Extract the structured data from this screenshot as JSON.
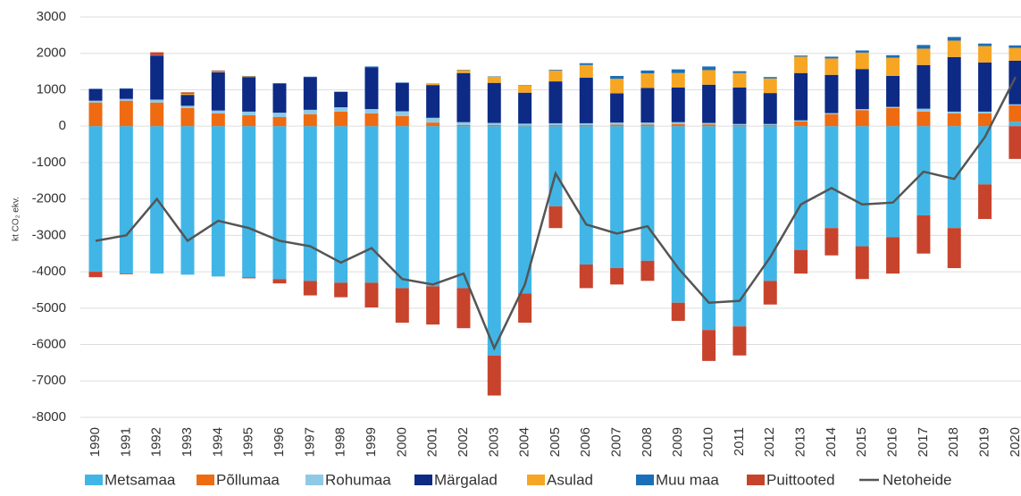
{
  "chart_data": {
    "type": "bar",
    "stacked": true,
    "y_label": "kt CO₂ ekv.",
    "categories": [
      "1990",
      "1991",
      "1992",
      "1993",
      "1994",
      "1995",
      "1996",
      "1997",
      "1998",
      "1999",
      "2000",
      "2001",
      "2002",
      "2003",
      "2004",
      "2005",
      "2006",
      "2007",
      "2008",
      "2009",
      "2010",
      "2011",
      "2012",
      "2013",
      "2014",
      "2015",
      "2016",
      "2017",
      "2018",
      "2019",
      "2020"
    ],
    "ylim": [
      -8000,
      3000
    ],
    "yticks": [
      -8000,
      -7000,
      -6000,
      -5000,
      -4000,
      -3000,
      -2000,
      -1000,
      0,
      1000,
      2000,
      3000
    ],
    "grid": true,
    "legend": "bottom",
    "series": [
      {
        "name": "Metsamaa",
        "color": "#41b6e6",
        "values": [
          -4000,
          -4050,
          -4050,
          -4080,
          -4130,
          -4150,
          -4200,
          -4250,
          -4300,
          -4300,
          -4450,
          -4400,
          -4450,
          -6300,
          -4600,
          -2200,
          -3800,
          -3900,
          -3700,
          -4850,
          -5600,
          -5500,
          -4250,
          -3400,
          -2800,
          -3300,
          -3050,
          -2450,
          -2800,
          -1600,
          120
        ]
      },
      {
        "name": "Põllumaa",
        "color": "#ee6b12",
        "values": [
          650,
          700,
          650,
          500,
          350,
          300,
          250,
          330,
          400,
          350,
          280,
          100,
          30,
          30,
          20,
          30,
          30,
          40,
          40,
          60,
          50,
          30,
          30,
          130,
          330,
          440,
          500,
          400,
          350,
          350,
          450
        ]
      },
      {
        "name": "Rohumaa",
        "color": "#8ecae6",
        "values": [
          50,
          50,
          80,
          60,
          80,
          100,
          120,
          120,
          120,
          120,
          130,
          130,
          80,
          60,
          50,
          50,
          50,
          60,
          60,
          50,
          40,
          30,
          30,
          30,
          30,
          30,
          30,
          80,
          50,
          50,
          30
        ]
      },
      {
        "name": "Märgalad",
        "color": "#0d2a85",
        "values": [
          320,
          280,
          1200,
          300,
          1050,
          950,
          800,
          900,
          420,
          1150,
          780,
          900,
          1350,
          1100,
          850,
          1150,
          1250,
          800,
          950,
          950,
          1050,
          1000,
          850,
          1300,
          1050,
          1100,
          850,
          1200,
          1500,
          1350,
          1200
        ]
      },
      {
        "name": "Asulad",
        "color": "#f6a623",
        "values": [
          0,
          0,
          0,
          30,
          20,
          20,
          0,
          0,
          0,
          0,
          0,
          30,
          80,
          170,
          200,
          300,
          350,
          400,
          400,
          400,
          400,
          400,
          400,
          450,
          450,
          450,
          500,
          450,
          450,
          450,
          350
        ]
      },
      {
        "name": "Muu maa",
        "color": "#1a6fb8",
        "values": [
          10,
          10,
          20,
          10,
          10,
          10,
          10,
          10,
          10,
          20,
          10,
          10,
          10,
          10,
          10,
          20,
          50,
          80,
          80,
          100,
          100,
          50,
          40,
          30,
          50,
          60,
          70,
          100,
          100,
          70,
          70
        ]
      },
      {
        "name": "Puittooted",
        "color": "#c8432c",
        "values": [
          -150,
          -20,
          80,
          30,
          20,
          -30,
          -120,
          -400,
          -400,
          -680,
          -950,
          -1050,
          -1100,
          -1100,
          -800,
          -600,
          -650,
          -450,
          -550,
          -500,
          -850,
          -800,
          -650,
          -650,
          -750,
          -900,
          -1000,
          -1050,
          -1100,
          -950,
          -900
        ]
      },
      {
        "name": "Netoheide",
        "type": "line",
        "color": "#555555",
        "values": [
          -3150,
          -3000,
          -2000,
          -3150,
          -2600,
          -2800,
          -3150,
          -3300,
          -3750,
          -3350,
          -4200,
          -4350,
          -4050,
          -6100,
          -4350,
          -1300,
          -2700,
          -2950,
          -2750,
          -3900,
          -4850,
          -4800,
          -3600,
          -2150,
          -1700,
          -2150,
          -2100,
          -1250,
          -1450,
          -300,
          1350
        ]
      }
    ]
  }
}
